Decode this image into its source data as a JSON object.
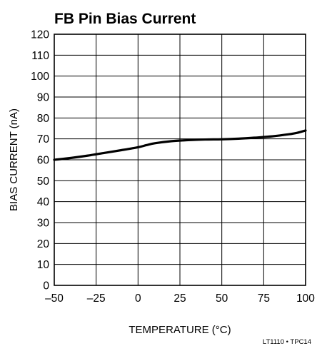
{
  "chart_data": {
    "type": "line",
    "title": "FB Pin Bias Current",
    "xlabel": "TEMPERATURE (°C)",
    "ylabel": "BIAS CURRENT (nA)",
    "xlim": [
      -50,
      100
    ],
    "ylim": [
      0,
      120
    ],
    "x_ticks": [
      "–50",
      "–25",
      "0",
      "25",
      "50",
      "75",
      "100"
    ],
    "y_ticks": [
      "0",
      "10",
      "20",
      "30",
      "40",
      "50",
      "60",
      "70",
      "80",
      "90",
      "100",
      "110",
      "120"
    ],
    "grid": true,
    "series": [
      {
        "x": [
          -50,
          -40,
          -30,
          -20,
          -10,
          0,
          5,
          10,
          20,
          30,
          40,
          50,
          60,
          70,
          80,
          90,
          95,
          100
        ],
        "y": [
          60,
          60.9,
          62.0,
          63.3,
          64.6,
          66.0,
          67.0,
          67.9,
          68.9,
          69.4,
          69.7,
          69.8,
          70.1,
          70.6,
          71.2,
          72.2,
          72.9,
          74.0
        ]
      }
    ]
  },
  "footnote": "LT1110 • TPC14"
}
